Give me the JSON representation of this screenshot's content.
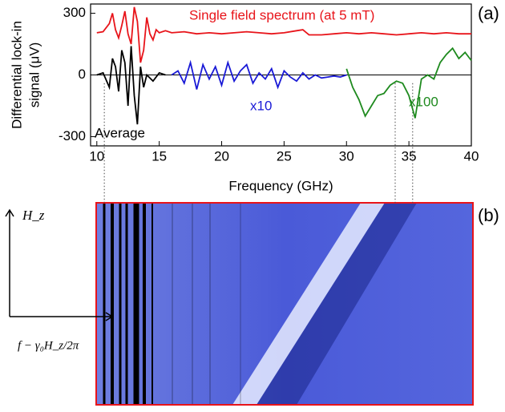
{
  "chart_data": {
    "type": "line",
    "panel_labels": [
      "(a)",
      "(b)"
    ],
    "x_label": "Frequency (GHz)",
    "y_label": [
      "Differential lock-in",
      "signal (μV)"
    ],
    "xlim": [
      9.5,
      40
    ],
    "ylim": [
      -345,
      345
    ],
    "xticks": [
      10,
      15,
      20,
      25,
      30,
      35,
      40
    ],
    "yticks": [
      -300,
      0,
      300
    ],
    "vlines": [
      10.6,
      33.9,
      35.3
    ],
    "series": [
      {
        "name": "Single field spectrum (at 5 mT)",
        "color": "#e8141a",
        "x": [
          10,
          10.5,
          11,
          11.25,
          11.5,
          11.75,
          12,
          12.25,
          12.5,
          12.75,
          13,
          13.25,
          13.5,
          13.75,
          14,
          14.25,
          14.5,
          14.75,
          15,
          15.5,
          16,
          17,
          18,
          19,
          20,
          21,
          22,
          23,
          24,
          25,
          26,
          26.5,
          27,
          28,
          29,
          30,
          31,
          32,
          33,
          34,
          35,
          36,
          37,
          38,
          39,
          40
        ],
        "values": [
          205,
          210,
          250,
          300,
          220,
          180,
          240,
          310,
          200,
          150,
          330,
          260,
          60,
          120,
          280,
          200,
          170,
          220,
          205,
          215,
          205,
          210,
          200,
          205,
          200,
          205,
          210,
          205,
          200,
          205,
          215,
          220,
          195,
          195,
          200,
          205,
          200,
          205,
          200,
          195,
          200,
          205,
          200,
          205,
          200,
          200
        ]
      },
      {
        "name": "Average",
        "color": "#000000",
        "x": [
          10,
          10.5,
          11,
          11.25,
          11.5,
          11.75,
          12,
          12.25,
          12.5,
          12.75,
          13,
          13.25,
          13.5,
          13.75,
          14,
          14.5,
          15,
          15.5
        ],
        "values": [
          0,
          10,
          -60,
          80,
          40,
          -80,
          120,
          60,
          -150,
          140,
          -100,
          -240,
          40,
          -60,
          0,
          -30,
          10,
          0
        ]
      },
      {
        "name": "x10",
        "color": "#1a1ad6",
        "x": [
          16,
          16.5,
          17,
          17.5,
          18,
          18.5,
          19,
          19.5,
          20,
          20.5,
          21,
          21.5,
          22,
          22.5,
          23,
          23.5,
          24,
          24.5,
          25,
          25.5,
          26,
          26.5,
          27,
          27.5,
          28,
          28.5,
          29,
          29.5,
          30
        ],
        "values": [
          0,
          20,
          -40,
          60,
          -70,
          50,
          -20,
          40,
          -50,
          60,
          -30,
          20,
          50,
          -40,
          10,
          -20,
          30,
          -60,
          20,
          -10,
          -30,
          10,
          -20,
          0,
          -15,
          -10,
          -5,
          -10,
          0
        ]
      },
      {
        "name": "x100",
        "color": "#1e8a1e",
        "x": [
          30,
          30.5,
          31,
          31.5,
          32,
          32.5,
          33,
          33.5,
          34,
          34.5,
          35,
          35.5,
          36,
          36.5,
          37,
          37.5,
          38,
          38.5,
          39,
          39.5,
          40
        ],
        "values": [
          30,
          -60,
          -120,
          -200,
          -150,
          -100,
          -90,
          -50,
          -30,
          -40,
          -100,
          -210,
          -20,
          0,
          -20,
          60,
          100,
          130,
          80,
          110,
          70
        ]
      }
    ],
    "annotations": [
      "H_z",
      "f − γ₀H_z/2π"
    ]
  }
}
